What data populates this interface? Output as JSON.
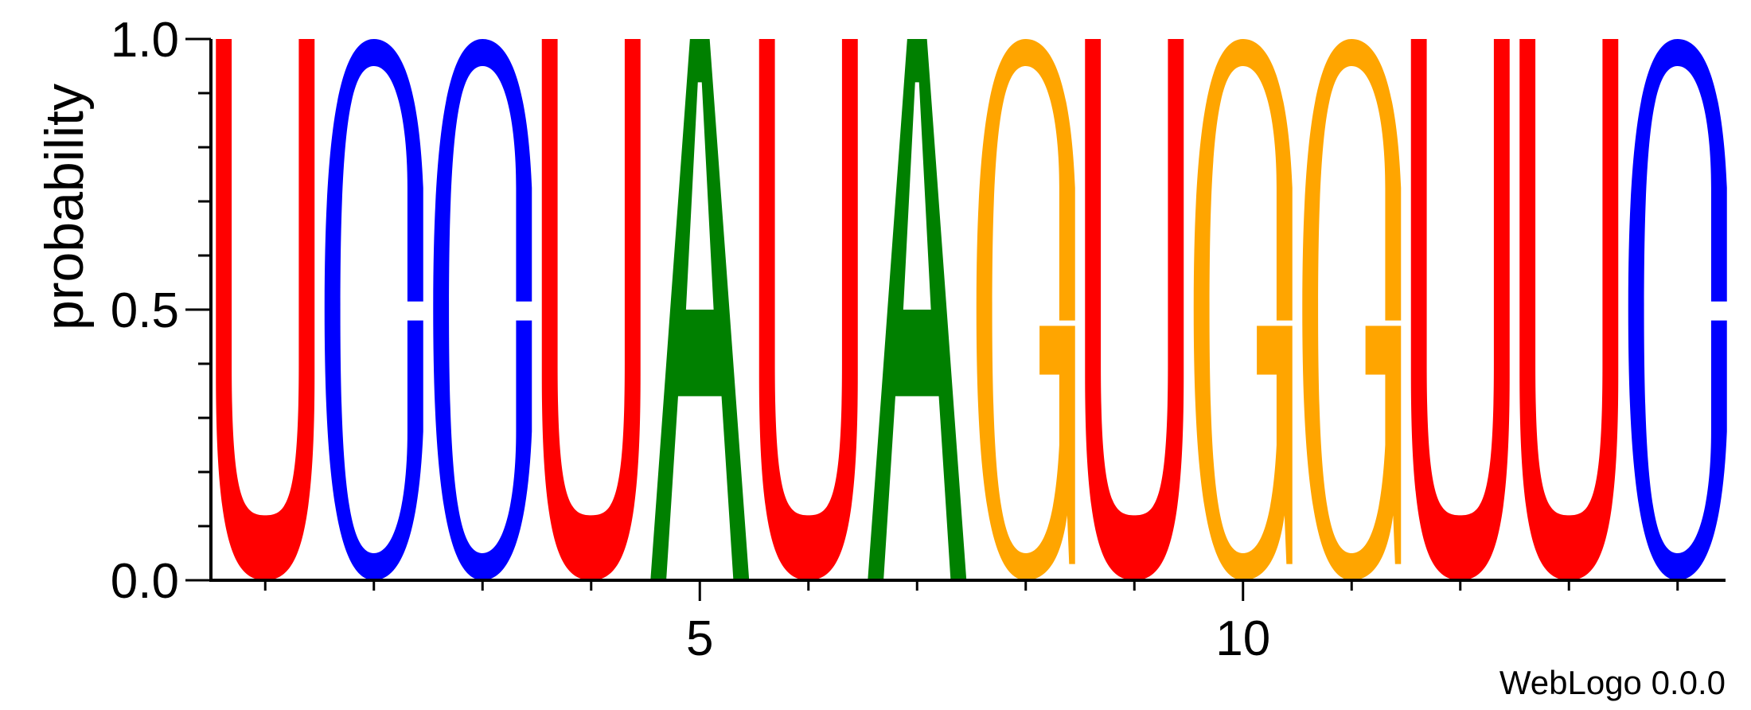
{
  "chart_data": {
    "type": "sequence-logo",
    "ylabel": "probability",
    "ylim": [
      0,
      1
    ],
    "y_ticks": [
      "0.0",
      "0.5",
      "1.0"
    ],
    "x_ticks": [
      {
        "position": 5,
        "label": "5"
      },
      {
        "position": 10,
        "label": "10"
      }
    ],
    "positions": [
      1,
      2,
      3,
      4,
      5,
      6,
      7,
      8,
      9,
      10,
      11,
      12,
      13,
      14
    ],
    "letters": [
      {
        "position": 1,
        "letter": "U",
        "probability": 1.0
      },
      {
        "position": 2,
        "letter": "C",
        "probability": 1.0
      },
      {
        "position": 3,
        "letter": "C",
        "probability": 1.0
      },
      {
        "position": 4,
        "letter": "U",
        "probability": 1.0
      },
      {
        "position": 5,
        "letter": "A",
        "probability": 1.0
      },
      {
        "position": 6,
        "letter": "U",
        "probability": 1.0
      },
      {
        "position": 7,
        "letter": "A",
        "probability": 1.0
      },
      {
        "position": 8,
        "letter": "G",
        "probability": 1.0
      },
      {
        "position": 9,
        "letter": "U",
        "probability": 1.0
      },
      {
        "position": 10,
        "letter": "G",
        "probability": 1.0
      },
      {
        "position": 11,
        "letter": "G",
        "probability": 1.0
      },
      {
        "position": 12,
        "letter": "U",
        "probability": 1.0
      },
      {
        "position": 13,
        "letter": "U",
        "probability": 1.0
      },
      {
        "position": 14,
        "letter": "C",
        "probability": 1.0
      }
    ],
    "colors": {
      "U": "#ff0000",
      "C": "#0000ff",
      "A": "#008000",
      "G": "#ffa500"
    },
    "footer": "WebLogo 0.0.0"
  }
}
